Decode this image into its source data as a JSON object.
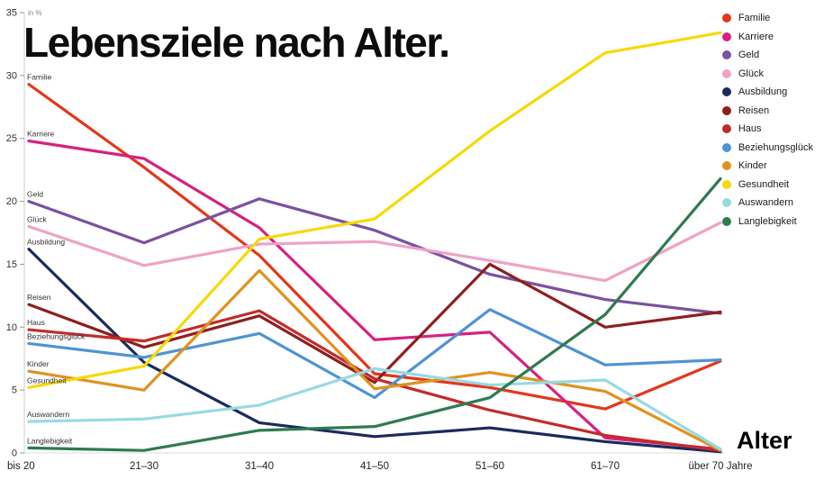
{
  "title": "Lebensziele nach Alter.",
  "chart_data": {
    "type": "line",
    "title": "Lebensziele nach Alter.",
    "unit_label": "in %",
    "xlabel": "Alter",
    "ylabel": "",
    "ylim": [
      0,
      35
    ],
    "yticks": [
      0,
      5,
      10,
      15,
      20,
      25,
      30,
      35
    ],
    "grid": false,
    "legend_position": "top-right",
    "categories": [
      "bis 20",
      "21–30",
      "31–40",
      "41–50",
      "51–60",
      "61–70",
      "über 70 Jahre"
    ],
    "series": [
      {
        "name": "Familie",
        "color": "#e2371b",
        "values": [
          29.3,
          22.7,
          15.7,
          6.3,
          5.2,
          3.5,
          7.3
        ]
      },
      {
        "name": "Karriere",
        "color": "#d6217f",
        "values": [
          24.8,
          23.4,
          17.9,
          9.0,
          9.6,
          1.2,
          0.3
        ]
      },
      {
        "name": "Geld",
        "color": "#7a52a0",
        "values": [
          20.0,
          16.7,
          20.2,
          17.7,
          14.2,
          12.2,
          11.1
        ]
      },
      {
        "name": "Glück",
        "color": "#efa3c5",
        "values": [
          18.0,
          14.9,
          16.6,
          16.8,
          15.3,
          13.7,
          18.3
        ]
      },
      {
        "name": "Ausbildung",
        "color": "#1b2a5e",
        "values": [
          16.2,
          7.2,
          2.4,
          1.3,
          2.0,
          0.9,
          0.1
        ]
      },
      {
        "name": "Reisen",
        "color": "#8e1f1f",
        "values": [
          11.8,
          8.4,
          10.9,
          5.6,
          15.0,
          10.0,
          11.2
        ]
      },
      {
        "name": "Haus",
        "color": "#c32b2b",
        "values": [
          9.8,
          8.9,
          11.3,
          5.9,
          3.4,
          1.4,
          0.2
        ]
      },
      {
        "name": "Beziehungsglück",
        "color": "#4f93d4",
        "values": [
          8.7,
          7.6,
          9.5,
          4.4,
          11.4,
          7.0,
          7.4
        ]
      },
      {
        "name": "Kinder",
        "color": "#e0921f",
        "values": [
          6.5,
          5.0,
          14.5,
          5.1,
          6.4,
          4.9,
          0.2
        ]
      },
      {
        "name": "Gesundheit",
        "color": "#f6d908",
        "values": [
          5.2,
          6.9,
          17.0,
          18.6,
          25.6,
          31.8,
          33.4
        ]
      },
      {
        "name": "Auswandern",
        "color": "#99d9e2",
        "values": [
          2.5,
          2.7,
          3.8,
          6.7,
          5.4,
          5.8,
          0.3
        ]
      },
      {
        "name": "Langlebigkeit",
        "color": "#2f7a51",
        "values": [
          0.4,
          0.2,
          1.8,
          2.1,
          4.4,
          11.0,
          21.8
        ]
      }
    ]
  }
}
